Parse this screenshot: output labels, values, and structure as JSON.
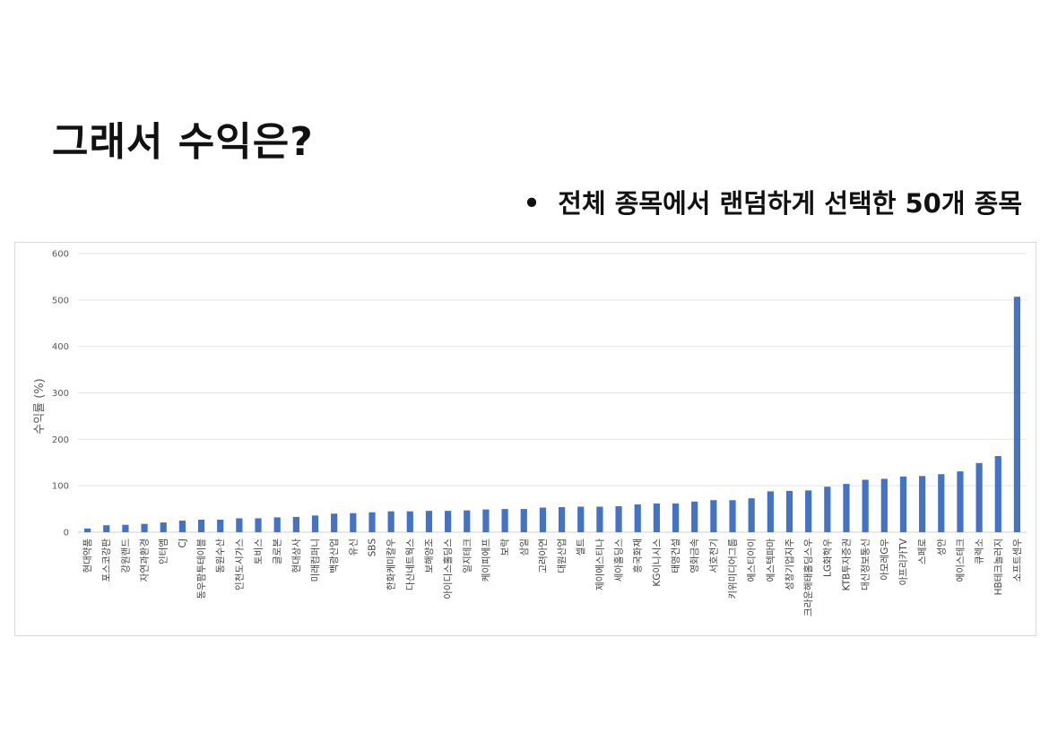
{
  "slide": {
    "title": "그래서 수익은?",
    "bullet_marker": "•",
    "bullet_text": "전체 종목에서 랜덤하게 선택한 50개 종목"
  },
  "colors": {
    "bar": "#4472c4",
    "grid": "#e4e4e4",
    "text": "#111111"
  },
  "chart_data": {
    "type": "bar",
    "ylabel": "수익률 (%)",
    "xlabel": "",
    "ylim": [
      0,
      600
    ],
    "yticks": [
      0,
      100,
      200,
      300,
      400,
      500,
      600
    ],
    "grid": true,
    "categories": [
      "현대약품",
      "포스코강판",
      "강원랜드",
      "자연과환경",
      "인터엠",
      "CJ",
      "동우팜투테이블",
      "동원수산",
      "인천도시가스",
      "토비스",
      "글로본",
      "현대상사",
      "미래컴퍼니",
      "백광산업",
      "유신",
      "SBS",
      "한화케미칼우",
      "다산네트웍스",
      "보해양조",
      "아이디스홀딩스",
      "일지테크",
      "케이피에프",
      "보락",
      "삼일",
      "고려아연",
      "대원산업",
      "셀트",
      "제이에스티나",
      "세아홀딩스",
      "흥국화재",
      "KG이니시스",
      "태영건설",
      "영화금속",
      "서호전기",
      "키위미디어그룹",
      "에스티아이",
      "에스텍파마",
      "성창기업지주",
      "크라운해태홀딩스우",
      "LG화학우",
      "KTB투자증권",
      "대신정보통신",
      "아모레G우",
      "아프리카TV",
      "스페로",
      "성안",
      "에이스테크",
      "큐렉소",
      "HB테크놀러지",
      "소프트센우"
    ],
    "values": [
      8,
      15,
      16,
      18,
      21,
      25,
      27,
      27,
      30,
      30,
      32,
      33,
      36,
      40,
      41,
      43,
      45,
      45,
      46,
      46,
      47,
      49,
      50,
      50,
      53,
      54,
      55,
      55,
      56,
      60,
      62,
      62,
      66,
      69,
      69,
      73,
      88,
      89,
      90,
      98,
      104,
      113,
      115,
      120,
      121,
      125,
      131,
      149,
      164,
      507
    ]
  }
}
